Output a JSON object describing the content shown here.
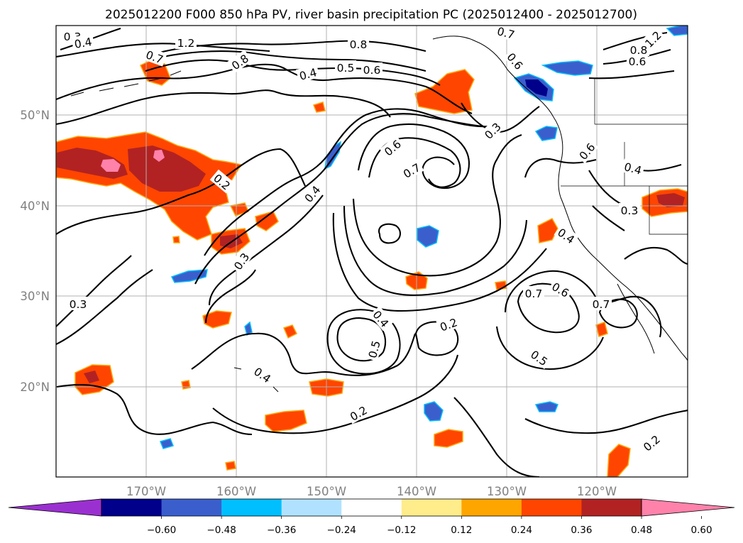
{
  "title": "2025012200 F000 850 hPa PV, river basin precipitation PC (2025012400 - 2025012700)",
  "lon_ticks": [
    "170°W",
    "160°W",
    "150°W",
    "140°W",
    "130°W",
    "120°W"
  ],
  "lat_ticks": [
    "50°N",
    "40°N",
    "30°N",
    "20°N"
  ],
  "colorbar": {
    "tick_labels": [
      "−0.60",
      "−0.48",
      "−0.36",
      "−0.24",
      "−0.12",
      "0.12",
      "0.24",
      "0.36",
      "0.48",
      "0.60"
    ],
    "colors": [
      "#9b30d0",
      "#00008b",
      "#3a5fcd",
      "#00bfff",
      "#b0e2ff",
      "#ffffff",
      "#ffec8b",
      "#ffa500",
      "#ff4500",
      "#b22222",
      "#ff82ab"
    ]
  },
  "colors": {
    "grid": "#b0b0b0",
    "tick_label": "#808080"
  },
  "contour_labels": [
    {
      "text": "0.3"
    },
    {
      "text": "0.4"
    },
    {
      "text": "1.2"
    },
    {
      "text": "0.7"
    },
    {
      "text": "0.8"
    },
    {
      "text": "0.8"
    },
    {
      "text": "0.4"
    },
    {
      "text": "0.5"
    },
    {
      "text": "0.6"
    },
    {
      "text": "0.7"
    },
    {
      "text": "0.6"
    },
    {
      "text": "1.2"
    },
    {
      "text": "0.8"
    },
    {
      "text": "0.6"
    },
    {
      "text": "0.3"
    },
    {
      "text": "0.6"
    },
    {
      "text": "0.7"
    },
    {
      "text": "0.6"
    },
    {
      "text": "0.4"
    },
    {
      "text": "0.2"
    },
    {
      "text": "0.4"
    },
    {
      "text": "0.3"
    },
    {
      "text": "0.3"
    },
    {
      "text": "0.3"
    },
    {
      "text": "0.4"
    },
    {
      "text": "0.7"
    },
    {
      "text": "0.6"
    },
    {
      "text": "0.7"
    },
    {
      "text": "0.4"
    },
    {
      "text": "0.5"
    },
    {
      "text": "0.2"
    },
    {
      "text": "0.5"
    },
    {
      "text": "0.2"
    },
    {
      "text": "0.2"
    },
    {
      "text": "0.4"
    }
  ]
}
